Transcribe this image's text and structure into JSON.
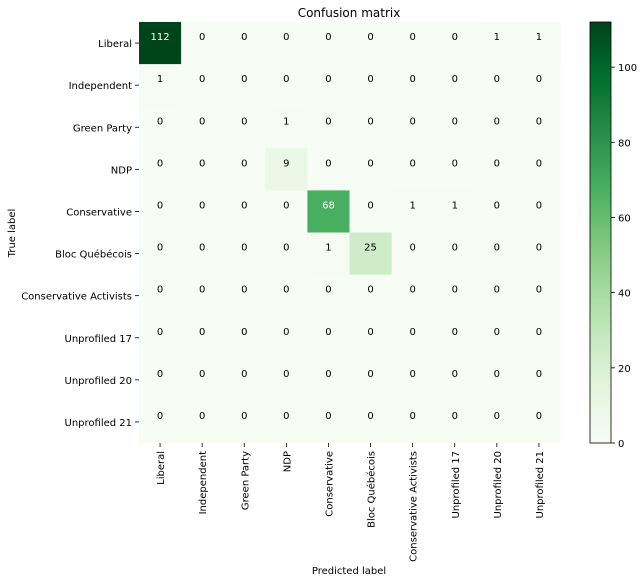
{
  "chart_data": {
    "type": "heatmap",
    "title": "Confusion matrix",
    "xlabel": "Predicted label",
    "ylabel": "True label",
    "row_labels": [
      "Liberal",
      "Independent",
      "Green Party",
      "NDP",
      "Conservative",
      "Bloc Québécois",
      "Conservative Activists",
      "Unprofiled 17",
      "Unprofiled 20",
      "Unprofiled 21"
    ],
    "col_labels": [
      "Liberal",
      "Independent",
      "Green Party",
      "NDP",
      "Conservative",
      "Bloc Québécois",
      "Conservative Activists",
      "Unprofiled 17",
      "Unprofiled 20",
      "Unprofiled 21"
    ],
    "values": [
      [
        112,
        0,
        0,
        0,
        0,
        0,
        0,
        0,
        1,
        1
      ],
      [
        1,
        0,
        0,
        0,
        0,
        0,
        0,
        0,
        0,
        0
      ],
      [
        0,
        0,
        0,
        1,
        0,
        0,
        0,
        0,
        0,
        0
      ],
      [
        0,
        0,
        0,
        9,
        0,
        0,
        0,
        0,
        0,
        0
      ],
      [
        0,
        0,
        0,
        0,
        68,
        0,
        1,
        1,
        0,
        0
      ],
      [
        0,
        0,
        0,
        0,
        1,
        25,
        0,
        0,
        0,
        0
      ],
      [
        0,
        0,
        0,
        0,
        0,
        0,
        0,
        0,
        0,
        0
      ],
      [
        0,
        0,
        0,
        0,
        0,
        0,
        0,
        0,
        0,
        0
      ],
      [
        0,
        0,
        0,
        0,
        0,
        0,
        0,
        0,
        0,
        0
      ],
      [
        0,
        0,
        0,
        0,
        0,
        0,
        0,
        0,
        0,
        0
      ]
    ],
    "colormap": "Greens",
    "vmin": 0,
    "vmax": 112,
    "colorbar_ticks": [
      0,
      20,
      40,
      60,
      80,
      100
    ],
    "grid": false
  }
}
